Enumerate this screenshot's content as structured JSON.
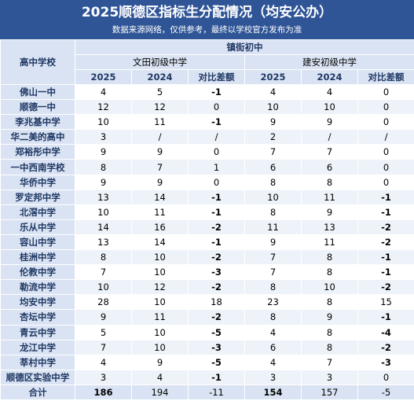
{
  "header": {
    "title": "2025顺德区指标生分配情况（均安公办）",
    "subtitle": "数据来源网络，仅供参考，最终以学校官方发布为准"
  },
  "table": {
    "corner": "高中学校",
    "group": "镇街初中",
    "schools": [
      "文田初级中学",
      "建安初级中学"
    ],
    "columns": [
      "2025",
      "2024",
      "对比差额",
      "2025",
      "2024",
      "对比差额"
    ],
    "rows": [
      [
        "佛山一中",
        4,
        5,
        -1,
        4,
        4,
        0
      ],
      [
        "顺德一中",
        12,
        12,
        0,
        10,
        10,
        0
      ],
      [
        "李兆基中学",
        10,
        11,
        -1,
        9,
        9,
        0
      ],
      [
        "华二美的高中",
        3,
        "/",
        "/",
        2,
        "/",
        "/"
      ],
      [
        "郑裕彤中学",
        9,
        9,
        0,
        7,
        7,
        0
      ],
      [
        "一中西南学校",
        8,
        7,
        1,
        6,
        6,
        0
      ],
      [
        "华侨中学",
        9,
        9,
        0,
        8,
        8,
        0
      ],
      [
        "罗定邦中学",
        13,
        14,
        -1,
        10,
        11,
        -1
      ],
      [
        "北滘中学",
        10,
        11,
        -1,
        8,
        9,
        -1
      ],
      [
        "乐从中学",
        14,
        16,
        -2,
        11,
        13,
        -2
      ],
      [
        "容山中学",
        13,
        14,
        -1,
        9,
        11,
        -2
      ],
      [
        "桂洲中学",
        8,
        10,
        -2,
        7,
        8,
        -1
      ],
      [
        "伦教中学",
        7,
        10,
        -3,
        7,
        8,
        -1
      ],
      [
        "勒流中学",
        10,
        12,
        -2,
        8,
        10,
        -2
      ],
      [
        "均安中学",
        28,
        10,
        18,
        23,
        8,
        15
      ],
      [
        "杏坛中学",
        9,
        11,
        -2,
        8,
        9,
        -1
      ],
      [
        "青云中学",
        5,
        10,
        -5,
        4,
        8,
        -4
      ],
      [
        "龙江中学",
        7,
        10,
        -3,
        6,
        8,
        -2
      ],
      [
        "莘村中学",
        4,
        9,
        -5,
        4,
        7,
        -3
      ],
      [
        "顺德区实验中学",
        3,
        4,
        -1,
        3,
        3,
        0
      ],
      [
        "合计",
        186,
        194,
        -11,
        154,
        157,
        -5
      ]
    ]
  }
}
